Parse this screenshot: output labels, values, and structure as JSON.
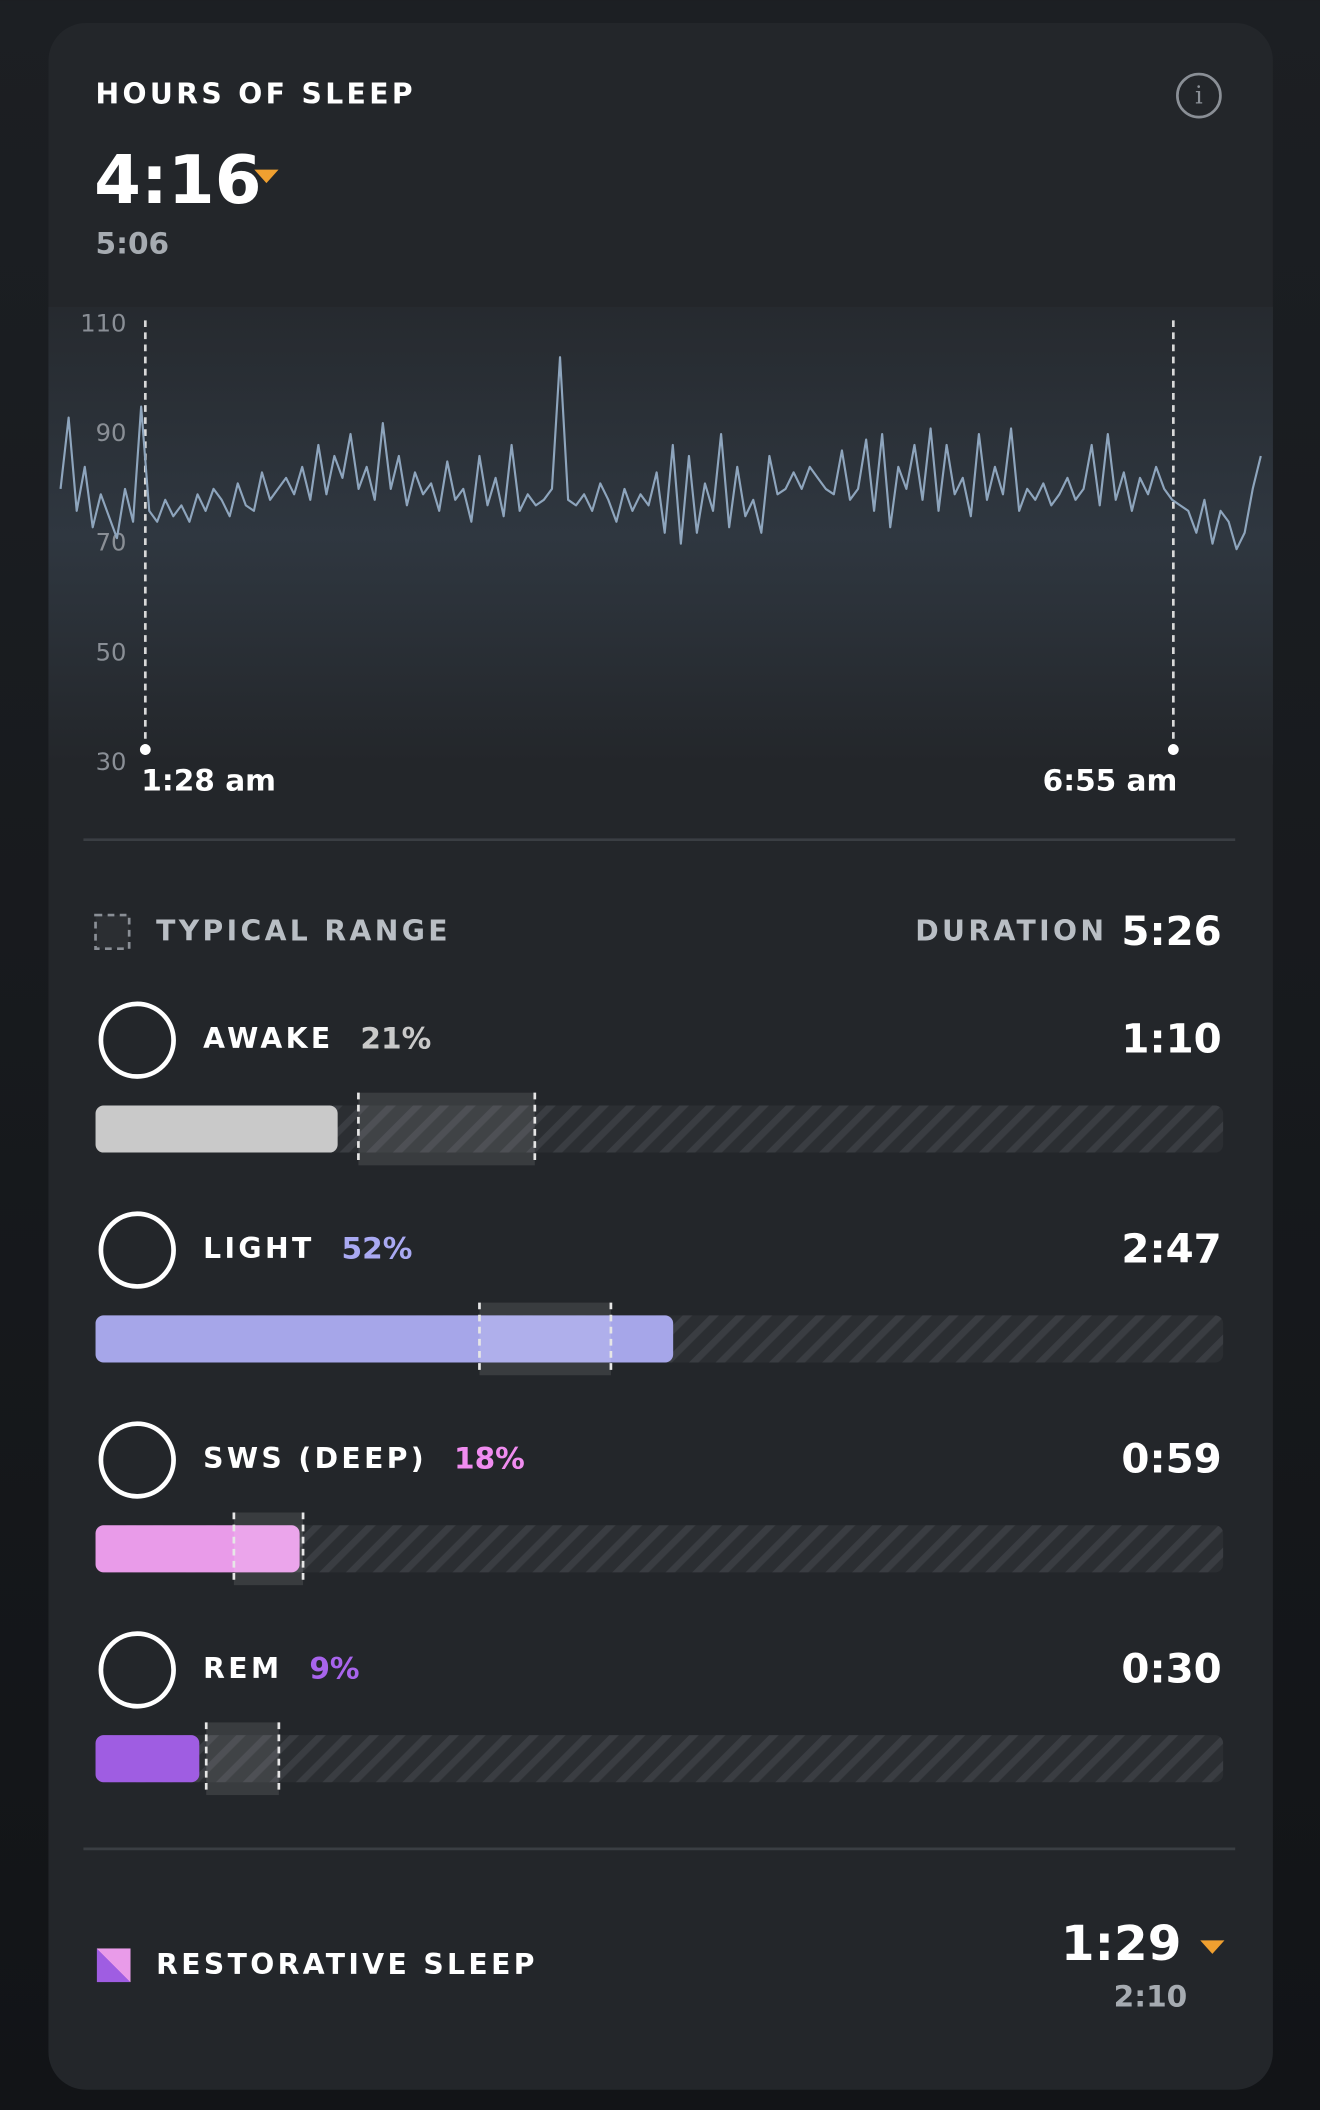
{
  "header": {
    "title": "HOURS OF SLEEP",
    "value": "4:16",
    "baseline": "5:06"
  },
  "chart_data": {
    "type": "line",
    "ylim": [
      30,
      110
    ],
    "yticks": [
      30,
      50,
      70,
      90,
      110
    ],
    "series": [
      {
        "color": "#8ea5bd",
        "values": [
          80,
          93,
          76,
          84,
          73,
          79,
          75,
          71,
          80,
          74,
          95,
          76,
          74,
          78,
          75,
          77,
          74,
          79,
          76,
          80,
          78,
          75,
          81,
          77,
          76,
          83,
          78,
          80,
          82,
          79,
          84,
          78,
          88,
          79,
          86,
          82,
          90,
          80,
          84,
          78,
          92,
          80,
          86,
          77,
          83,
          79,
          81,
          76,
          85,
          78,
          80,
          74,
          86,
          77,
          82,
          75,
          88,
          76,
          79,
          77,
          78,
          80,
          104,
          78,
          77,
          79,
          76,
          81,
          78,
          74,
          80,
          76,
          79,
          77,
          83,
          72,
          88,
          70,
          86,
          72,
          81,
          76,
          90,
          73,
          84,
          75,
          78,
          72,
          86,
          79,
          80,
          83,
          80,
          84,
          82,
          80,
          79,
          87,
          78,
          80,
          89,
          76,
          90,
          73,
          84,
          80,
          88,
          78,
          91,
          76,
          88,
          79,
          82,
          75,
          90,
          78,
          84,
          79,
          91,
          76,
          80,
          78,
          81,
          77,
          79,
          82,
          78,
          80,
          88,
          77,
          90,
          78,
          83,
          76,
          82,
          79,
          84,
          80,
          78,
          77,
          76,
          72,
          78,
          70,
          76,
          74,
          69,
          72,
          80,
          86
        ]
      }
    ],
    "start_label": "1:28 am",
    "end_label": "6:55 am"
  },
  "legend": {
    "typical_range": "TYPICAL RANGE",
    "duration_label": "DURATION",
    "duration": "5:26"
  },
  "stages": [
    {
      "name": "AWAKE",
      "percent": "21%",
      "duration": "1:10",
      "color": "#c9c9c9",
      "percent_color": "#c9c9c9",
      "typical_range": [
        76,
        127
      ]
    },
    {
      "name": "LIGHT",
      "percent": "52%",
      "duration": "2:47",
      "color": "#a6a6e9",
      "percent_color": "#a9a9f2",
      "typical_range": [
        111,
        149
      ]
    },
    {
      "name": "SWS (DEEP)",
      "percent": "18%",
      "duration": "0:59",
      "color": "#e99be9",
      "percent_color": "#f08cf0",
      "typical_range": [
        40,
        60
      ]
    },
    {
      "name": "REM",
      "percent": "9%",
      "duration": "0:30",
      "color": "#9f5de2",
      "percent_color": "#a864ec",
      "typical_range": [
        32,
        53
      ]
    }
  ],
  "restorative": {
    "label": "RESTORATIVE SLEEP",
    "value": "1:29",
    "baseline": "2:10"
  }
}
